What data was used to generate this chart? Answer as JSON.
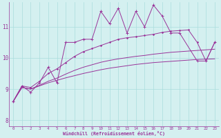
{
  "xlabel": "Windchill (Refroidissement éolien,°C)",
  "x_values": [
    0,
    1,
    2,
    3,
    4,
    5,
    6,
    7,
    8,
    9,
    10,
    11,
    12,
    13,
    14,
    15,
    16,
    17,
    18,
    19,
    20,
    21,
    22,
    23
  ],
  "line1": [
    8.6,
    9.1,
    8.9,
    9.2,
    9.7,
    9.2,
    10.5,
    10.5,
    10.6,
    10.6,
    11.5,
    11.1,
    11.6,
    10.8,
    11.5,
    11.0,
    11.7,
    11.35,
    10.8,
    10.8,
    null,
    9.9,
    9.9,
    10.5
  ],
  "line2": [
    8.6,
    9.1,
    9.05,
    9.25,
    9.5,
    9.65,
    9.85,
    10.05,
    10.2,
    10.3,
    10.4,
    10.5,
    10.6,
    10.65,
    10.68,
    10.72,
    10.76,
    10.82,
    10.86,
    10.88,
    10.9,
    10.5,
    9.9,
    10.5
  ],
  "line3": [
    8.6,
    9.05,
    9.0,
    9.12,
    9.25,
    9.35,
    9.48,
    9.6,
    9.7,
    9.78,
    9.86,
    9.92,
    9.97,
    10.01,
    10.05,
    10.08,
    10.12,
    10.15,
    10.18,
    10.2,
    10.22,
    10.24,
    10.26,
    10.28
  ],
  "line4": [
    8.6,
    9.05,
    9.0,
    9.1,
    9.2,
    9.28,
    9.36,
    9.43,
    9.5,
    9.56,
    9.62,
    9.67,
    9.71,
    9.75,
    9.79,
    9.82,
    9.85,
    9.87,
    9.89,
    9.91,
    9.93,
    9.95,
    9.96,
    9.97
  ],
  "line_color": "#993399",
  "bg_color": "#d4f0f0",
  "grid_color": "#aadddd",
  "ylim": [
    7.8,
    11.8
  ],
  "xlim": [
    -0.5,
    23.5
  ],
  "xtick_labels": [
    "0",
    "1",
    "2",
    "3",
    "4",
    "5",
    "6",
    "7",
    "8",
    "9",
    "10",
    "11",
    "12",
    "13",
    "14",
    "15",
    "16",
    "17",
    "18",
    "19",
    "20",
    "21",
    "22",
    "23"
  ],
  "ytick_labels": [
    "8",
    "9",
    "10",
    "11"
  ],
  "ytick_vals": [
    8,
    9,
    10,
    11
  ]
}
